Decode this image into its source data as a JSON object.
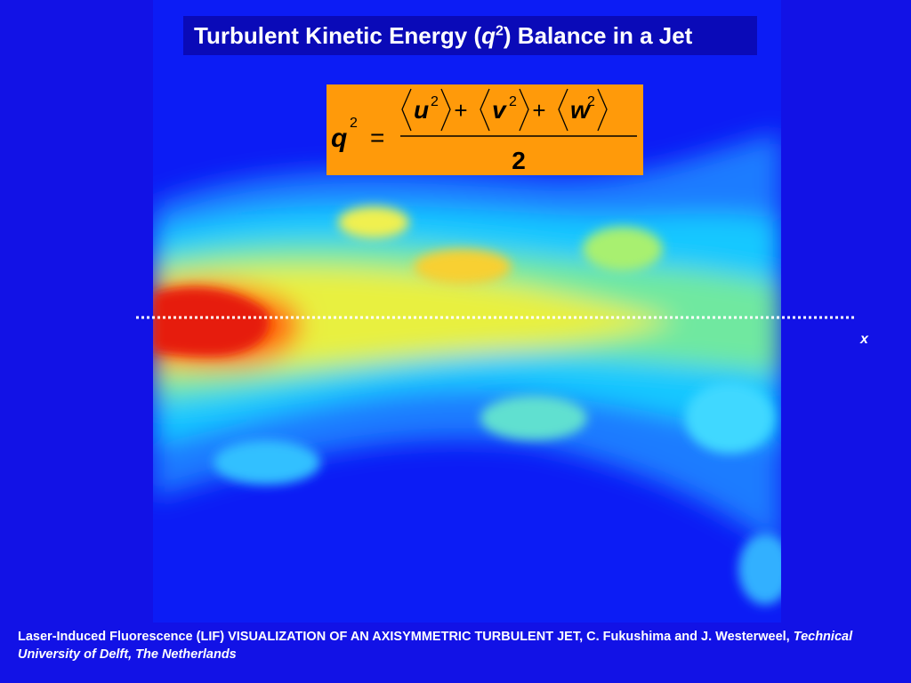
{
  "header": {
    "title_start": "Turbulent Kinetic Energy (",
    "title_symbol": "q",
    "title_power": "2",
    "title_end": ") Balance in a Jet"
  },
  "equation": {
    "lhs": "q",
    "lhs_power": "2",
    "equals": "=",
    "terms": [
      {
        "symbol": "u",
        "power": "2"
      },
      {
        "symbol": "v",
        "power": "2"
      },
      {
        "symbol": "w",
        "power": "2"
      }
    ],
    "plus": "+",
    "denominator": "2"
  },
  "axis_label": "x",
  "caption": {
    "text": "Laser-Induced Fluorescence (LIF) VISUALIZATION OF AN AXISYMMETRIC TURBULENT JET, C. Fukushima and J. Westerweel, ",
    "source": "Technical University of Delft, The Netherlands"
  }
}
